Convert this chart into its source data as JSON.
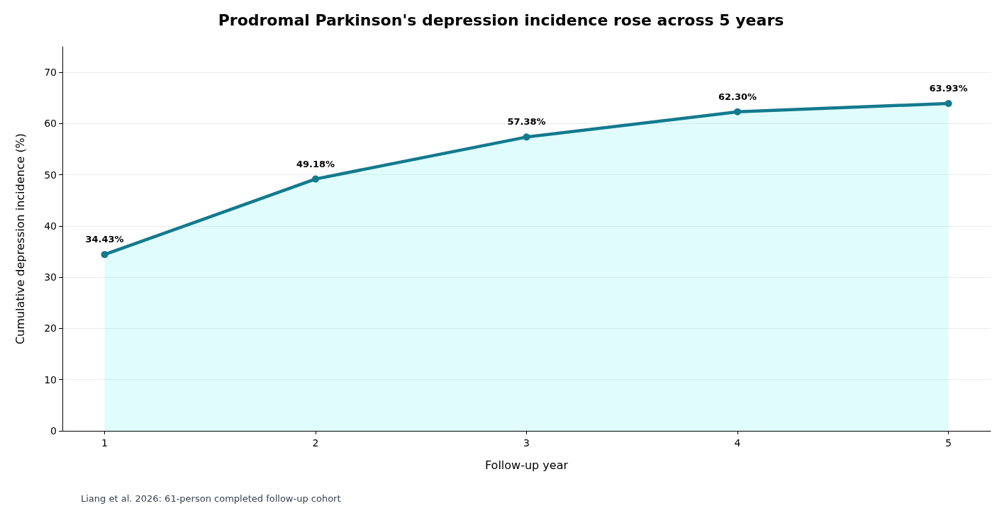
{
  "chart_data": {
    "type": "area",
    "title": "Prodromal Parkinson's depression incidence rose across 5 years",
    "xlabel": "Follow-up year",
    "ylabel": "Cumulative depression incidence (%)",
    "x": [
      1,
      2,
      3,
      4,
      5
    ],
    "series": [
      {
        "color": "#137a8e",
        "values": [
          34.43,
          49.18,
          57.38,
          62.3,
          63.93
        ],
        "value_labels": [
          "34.43%",
          "49.18%",
          "57.38%",
          "62.30%",
          "63.93%"
        ]
      }
    ],
    "xlim": [
      0.8,
      5.2
    ],
    "xticks": [
      1,
      2,
      3,
      4,
      5
    ],
    "ylim": [
      0,
      75
    ],
    "yticks": [
      0,
      10,
      20,
      30,
      40,
      50,
      60,
      70
    ],
    "grid": "y",
    "marker": "circle",
    "line_style": "solid",
    "annotations": [
      "Liang et al. 2026: 61-person completed follow-up cohort"
    ]
  }
}
